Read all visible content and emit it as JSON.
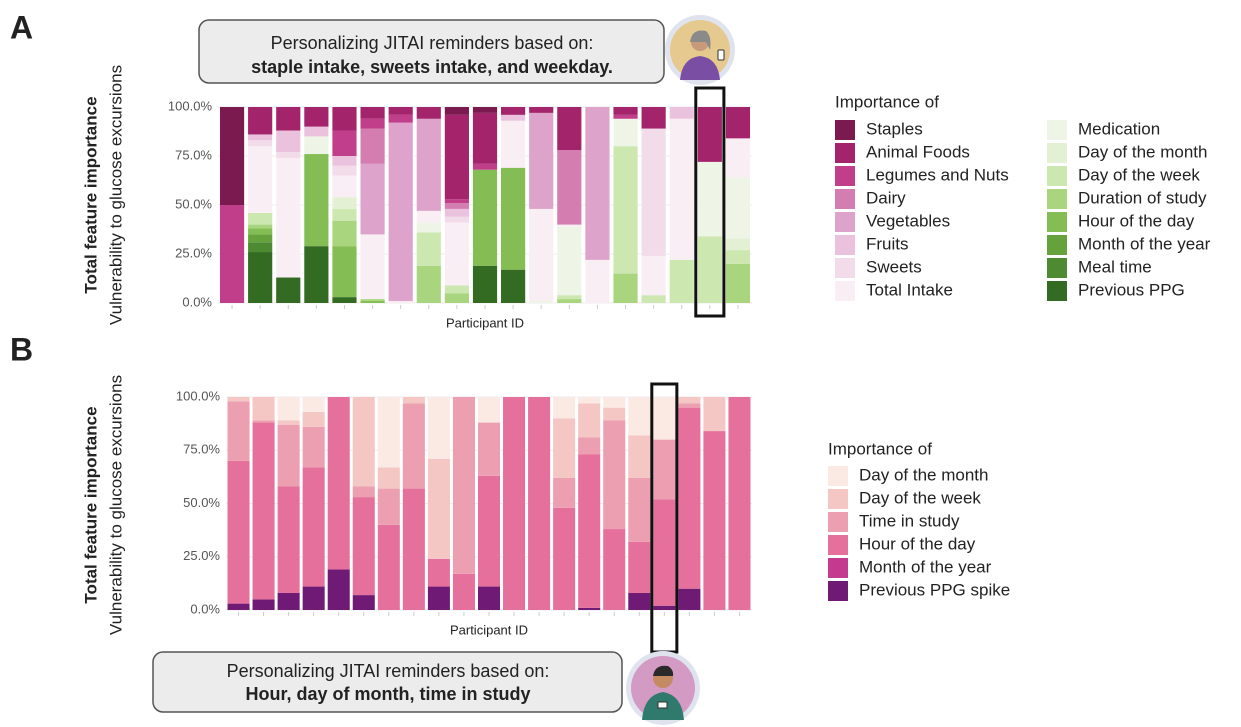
{
  "chart_data": [
    {
      "type": "bar",
      "stacked": true,
      "panel_label": "A",
      "callout": [
        "Personalizing JITAI reminders based on:",
        "staple intake, sweets intake, and weekday."
      ],
      "ylabel": [
        "Total feature importance",
        "Vulnerability to glucose excursions"
      ],
      "xlabel": "Participant ID",
      "legend_title": "Importance of",
      "legend_columns": 2,
      "grid": true,
      "highlight": 17,
      "ylim": [
        0,
        100
      ],
      "yticks": [
        {
          "value": 0,
          "label": "0.0%"
        },
        {
          "value": 25,
          "label": "25.0%"
        },
        {
          "value": 50,
          "label": "50.0%"
        },
        {
          "value": 75,
          "label": "75.0%"
        },
        {
          "value": 100,
          "label": "100.0%"
        }
      ],
      "categories": [
        null,
        null,
        null,
        null,
        null,
        null,
        null,
        null,
        null,
        null,
        null,
        null,
        null,
        null,
        null,
        null,
        null,
        null,
        null
      ],
      "series": [
        {
          "name": "Staples",
          "color": "#7a1a4f",
          "values": [
            50,
            0,
            0,
            0,
            0,
            0,
            0,
            0,
            4,
            3,
            0,
            0,
            0,
            0,
            0,
            0,
            0,
            0,
            0
          ]
        },
        {
          "name": "Animal Foods",
          "color": "#a3246b",
          "values": [
            0,
            14,
            12,
            10,
            12,
            6,
            4,
            6,
            43,
            26,
            4,
            3,
            22,
            0,
            4,
            11,
            0,
            28,
            16
          ]
        },
        {
          "name": "Legumes and Nuts",
          "color": "#c13f8a",
          "values": [
            50,
            0,
            0,
            0,
            13,
            5,
            4,
            0,
            2,
            3,
            0,
            0,
            0,
            0,
            2,
            0,
            0,
            0,
            0
          ]
        },
        {
          "name": "Dairy",
          "color": "#d47db1",
          "values": [
            0,
            0,
            0,
            0,
            0,
            18,
            0,
            0,
            3,
            0,
            0,
            0,
            38,
            0,
            0,
            0,
            0,
            0,
            0
          ]
        },
        {
          "name": "Vegetables",
          "color": "#dea3cb",
          "values": [
            0,
            0,
            0,
            0,
            0,
            36,
            91,
            47,
            0,
            0,
            0,
            49,
            0,
            78,
            0,
            0,
            0,
            0,
            0
          ]
        },
        {
          "name": "Fruits",
          "color": "#ebc2dd",
          "values": [
            0,
            3,
            11,
            5,
            5,
            0,
            0,
            0,
            4,
            0,
            3,
            0,
            0,
            0,
            0,
            0,
            6,
            0,
            0
          ]
        },
        {
          "name": "Sweets",
          "color": "#f3dcea",
          "values": [
            0,
            3,
            3,
            0,
            5,
            0,
            0,
            0,
            3,
            0,
            0,
            0,
            0,
            0,
            0,
            65,
            0,
            0,
            0
          ]
        },
        {
          "name": "Total Intake",
          "color": "#f8eef4",
          "values": [
            0,
            34,
            61,
            0,
            11,
            33,
            1,
            6,
            32,
            0,
            24,
            47,
            1,
            22,
            0,
            20,
            72,
            0,
            20
          ]
        },
        {
          "name": "Medication",
          "color": "#eef5e6",
          "values": [
            0,
            0,
            0,
            9,
            0,
            0,
            0,
            5,
            0,
            0,
            0,
            1,
            35,
            0,
            14,
            0,
            0,
            38,
            31
          ]
        },
        {
          "name": "Day of the month",
          "color": "#e3f0d3",
          "values": [
            0,
            0,
            0,
            0,
            6,
            0,
            0,
            0,
            0,
            0,
            0,
            0,
            0,
            0,
            0,
            0,
            0,
            0,
            6
          ]
        },
        {
          "name": "Day of the week",
          "color": "#cde7b0",
          "values": [
            0,
            6,
            0,
            0,
            6,
            0,
            0,
            17,
            4,
            0,
            0,
            0,
            2,
            0,
            65,
            4,
            22,
            34,
            7
          ]
        },
        {
          "name": "Duration of study",
          "color": "#a9d57f",
          "values": [
            0,
            2,
            0,
            0,
            13,
            1,
            0,
            19,
            5,
            0,
            0,
            0,
            2,
            0,
            15,
            0,
            0,
            0,
            20
          ]
        },
        {
          "name": "Hour of the day",
          "color": "#84bd53",
          "values": [
            0,
            3,
            0,
            47,
            26,
            1,
            0,
            0,
            0,
            49,
            52,
            0,
            0,
            0,
            0,
            0,
            0,
            0,
            0
          ]
        },
        {
          "name": "Month of the year",
          "color": "#66a23c",
          "values": [
            0,
            4,
            0,
            0,
            0,
            0,
            0,
            0,
            0,
            0,
            0,
            0,
            0,
            0,
            0,
            0,
            0,
            0,
            0
          ]
        },
        {
          "name": "Meal time",
          "color": "#4e8a31",
          "values": [
            0,
            5,
            0,
            0,
            0,
            0,
            0,
            0,
            0,
            0,
            0,
            0,
            0,
            0,
            0,
            0,
            0,
            0,
            0
          ]
        },
        {
          "name": "Previous PPG",
          "color": "#336b22",
          "values": [
            0,
            26,
            13,
            29,
            3,
            0,
            0,
            0,
            0,
            19,
            17,
            0,
            0,
            0,
            0,
            0,
            0,
            0,
            0
          ]
        }
      ]
    },
    {
      "type": "bar",
      "stacked": true,
      "panel_label": "B",
      "callout": [
        "Personalizing JITAI reminders based on:",
        "Hour, day of month, time in study"
      ],
      "ylabel": [
        "Total feature importance",
        "Vulnerability to glucose excursions"
      ],
      "xlabel": "Participant ID",
      "legend_title": "Importance of",
      "legend_columns": 1,
      "grid": true,
      "highlight": 17,
      "ylim": [
        0,
        100
      ],
      "yticks": [
        {
          "value": 0,
          "label": "0.0%"
        },
        {
          "value": 25,
          "label": "25.0%"
        },
        {
          "value": 50,
          "label": "50.0%"
        },
        {
          "value": 75,
          "label": "75.0%"
        },
        {
          "value": 100,
          "label": "100.0%"
        }
      ],
      "categories": [
        null,
        null,
        null,
        null,
        null,
        null,
        null,
        null,
        null,
        null,
        null,
        null,
        null,
        null,
        null,
        null,
        null,
        null,
        null,
        null,
        null
      ],
      "series": [
        {
          "name": "Day of the month",
          "color": "#fbe9e4",
          "values": [
            0,
            0,
            11,
            7,
            0,
            0,
            33,
            0,
            29,
            0,
            12,
            0,
            0,
            10,
            3,
            5,
            18,
            20,
            0,
            0,
            0
          ]
        },
        {
          "name": "Day of the week",
          "color": "#f4c6c4",
          "values": [
            2,
            11,
            2,
            7,
            0,
            42,
            10,
            3,
            47,
            0,
            0,
            0,
            0,
            28,
            16,
            6,
            20,
            0,
            3,
            16,
            0
          ]
        },
        {
          "name": "Time in study",
          "color": "#ec9fb0",
          "values": [
            28,
            1,
            29,
            19,
            0,
            5,
            17,
            40,
            0,
            83,
            25,
            0,
            0,
            14,
            8,
            51,
            30,
            28,
            2,
            0,
            0
          ]
        },
        {
          "name": "Hour of the day",
          "color": "#e5709c",
          "values": [
            67,
            83,
            50,
            56,
            81,
            46,
            40,
            57,
            13,
            17,
            52,
            100,
            100,
            48,
            72,
            38,
            24,
            50,
            85,
            84,
            100
          ]
        },
        {
          "name": "Month of the year",
          "color": "#c43a8f",
          "values": [
            0,
            0,
            0,
            0,
            0,
            0,
            0,
            0,
            0,
            0,
            0,
            0,
            0,
            0,
            0,
            0,
            0,
            0,
            0,
            0,
            0
          ]
        },
        {
          "name": "Previous PPG spike",
          "color": "#6f1a75",
          "values": [
            3,
            5,
            8,
            11,
            19,
            7,
            0,
            0,
            11,
            0,
            11,
            0,
            0,
            0,
            1,
            0,
            8,
            2,
            10,
            0,
            0
          ]
        }
      ]
    }
  ]
}
